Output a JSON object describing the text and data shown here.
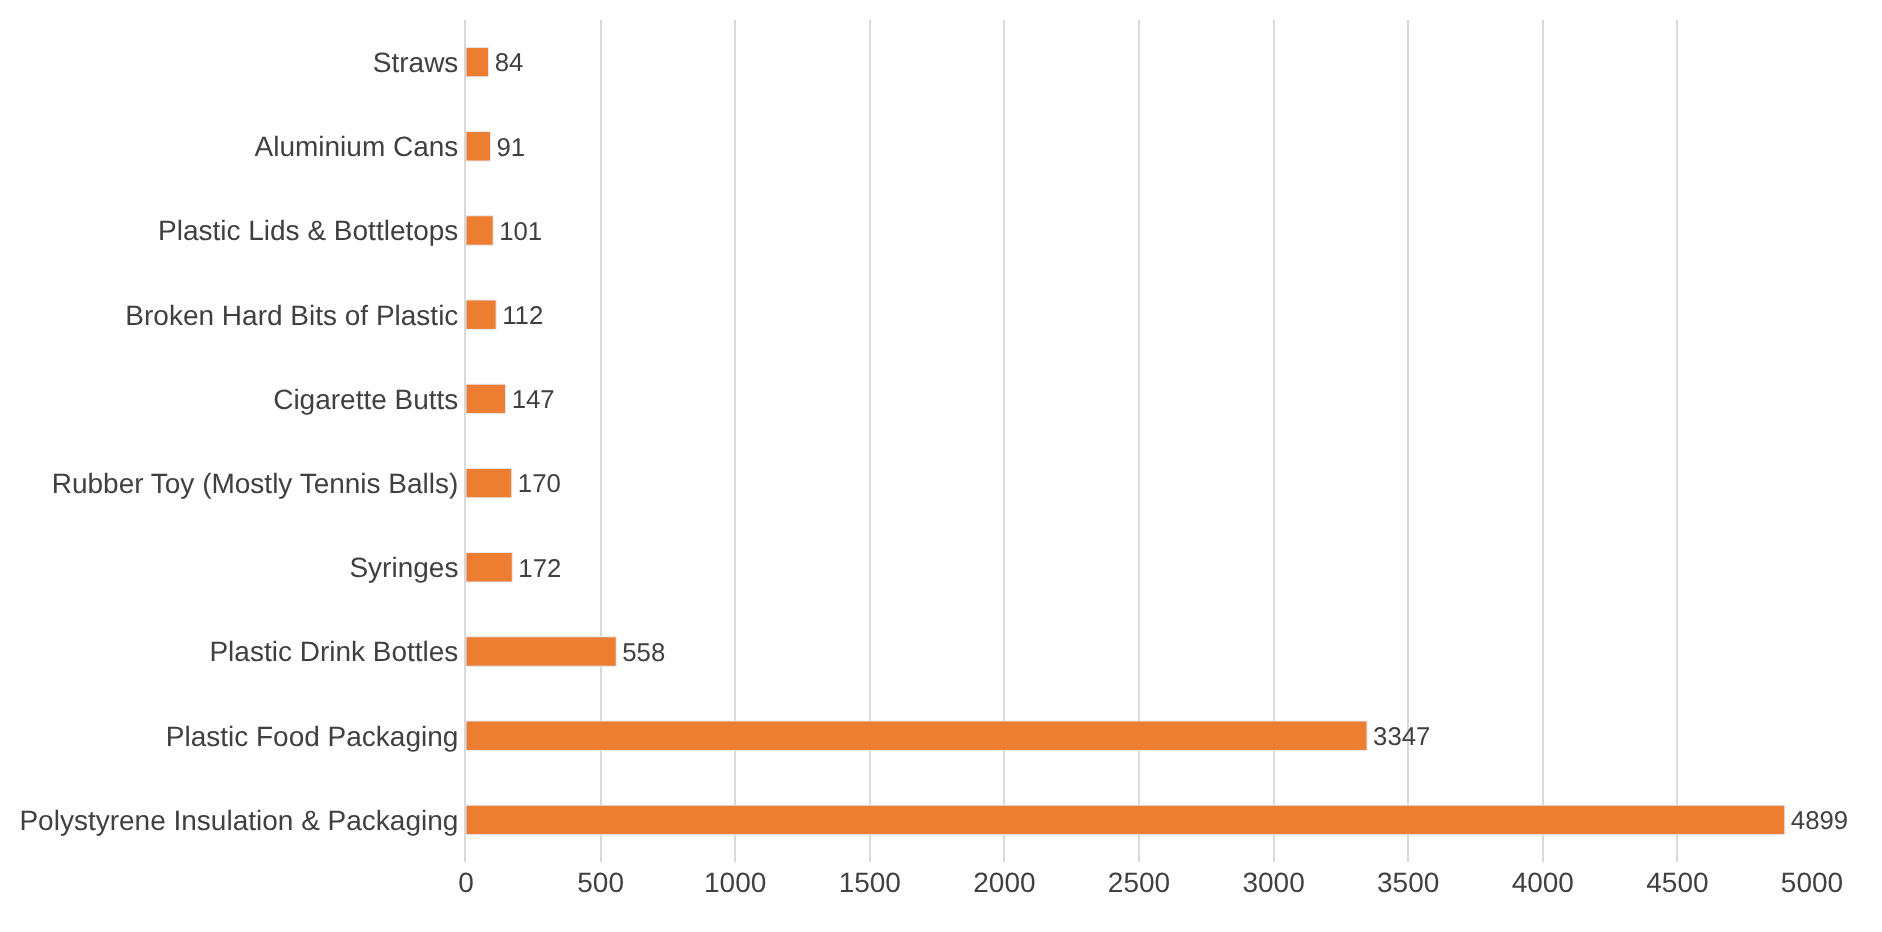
{
  "chart_data": {
    "type": "bar",
    "orientation": "horizontal",
    "categories": [
      "Straws",
      "Aluminium Cans",
      "Plastic Lids & Bottletops",
      "Broken Hard Bits of Plastic",
      "Cigarette Butts",
      "Rubber Toy (Mostly Tennis Balls)",
      "Syringes",
      "Plastic Drink Bottles",
      "Plastic Food Packaging",
      "Polystyrene Insulation & Packaging"
    ],
    "values": [
      84,
      91,
      101,
      112,
      147,
      170,
      172,
      558,
      3347,
      4899
    ],
    "color": "#ed7d31",
    "xlim": [
      0,
      5000
    ],
    "xticks": [
      0,
      500,
      1000,
      1500,
      2000,
      2500,
      3000,
      3500,
      4000,
      4500,
      5000
    ],
    "grid": "x",
    "data_labels": true,
    "legend": false
  }
}
